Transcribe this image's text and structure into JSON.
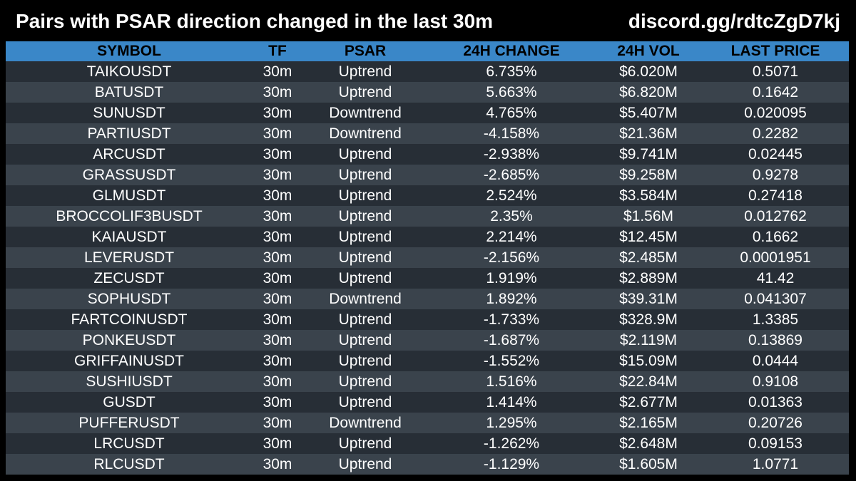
{
  "header": {
    "title": "Pairs with PSAR direction changed in the last 30m",
    "link": "discord.gg/rdtcZgD7kj"
  },
  "table": {
    "columns": [
      "SYMBOL",
      "TF",
      "PSAR",
      "24H CHANGE",
      "24H VOL",
      "LAST PRICE"
    ],
    "rows": [
      [
        "TAIKOUSDT",
        "30m",
        "Uptrend",
        "6.735%",
        "$6.020M",
        "0.5071"
      ],
      [
        "BATUSDT",
        "30m",
        "Uptrend",
        "5.663%",
        "$6.820M",
        "0.1642"
      ],
      [
        "SUNUSDT",
        "30m",
        "Downtrend",
        "4.765%",
        "$5.407M",
        "0.020095"
      ],
      [
        "PARTIUSDT",
        "30m",
        "Downtrend",
        "-4.158%",
        "$21.36M",
        "0.2282"
      ],
      [
        "ARCUSDT",
        "30m",
        "Uptrend",
        "-2.938%",
        "$9.741M",
        "0.02445"
      ],
      [
        "GRASSUSDT",
        "30m",
        "Uptrend",
        "-2.685%",
        "$9.258M",
        "0.9278"
      ],
      [
        "GLMUSDT",
        "30m",
        "Uptrend",
        "2.524%",
        "$3.584M",
        "0.27418"
      ],
      [
        "BROCCOLIF3BUSDT",
        "30m",
        "Uptrend",
        "2.35%",
        "$1.56M",
        "0.012762"
      ],
      [
        "KAIAUSDT",
        "30m",
        "Uptrend",
        "2.214%",
        "$12.45M",
        "0.1662"
      ],
      [
        "LEVERUSDT",
        "30m",
        "Uptrend",
        "-2.156%",
        "$2.485M",
        "0.0001951"
      ],
      [
        "ZECUSDT",
        "30m",
        "Uptrend",
        "1.919%",
        "$2.889M",
        "41.42"
      ],
      [
        "SOPHUSDT",
        "30m",
        "Downtrend",
        "1.892%",
        "$39.31M",
        "0.041307"
      ],
      [
        "FARTCOINUSDT",
        "30m",
        "Uptrend",
        "-1.733%",
        "$328.9M",
        "1.3385"
      ],
      [
        "PONKEUSDT",
        "30m",
        "Uptrend",
        "-1.687%",
        "$2.119M",
        "0.13869"
      ],
      [
        "GRIFFAINUSDT",
        "30m",
        "Uptrend",
        "-1.552%",
        "$15.09M",
        "0.0444"
      ],
      [
        "SUSHIUSDT",
        "30m",
        "Uptrend",
        "1.516%",
        "$22.84M",
        "0.9108"
      ],
      [
        "GUSDT",
        "30m",
        "Uptrend",
        "1.414%",
        "$2.677M",
        "0.01363"
      ],
      [
        "PUFFERUSDT",
        "30m",
        "Downtrend",
        "1.295%",
        "$2.165M",
        "0.20726"
      ],
      [
        "LRCUSDT",
        "30m",
        "Uptrend",
        "-1.262%",
        "$2.648M",
        "0.09153"
      ],
      [
        "RLCUSDT",
        "30m",
        "Uptrend",
        "-1.129%",
        "$1.605M",
        "1.0771"
      ]
    ]
  },
  "colors": {
    "background": "#000000",
    "header_bar": "#3a87c8",
    "row_dark": "#272e36",
    "row_light": "#3a434c",
    "text": "#ffffff"
  }
}
